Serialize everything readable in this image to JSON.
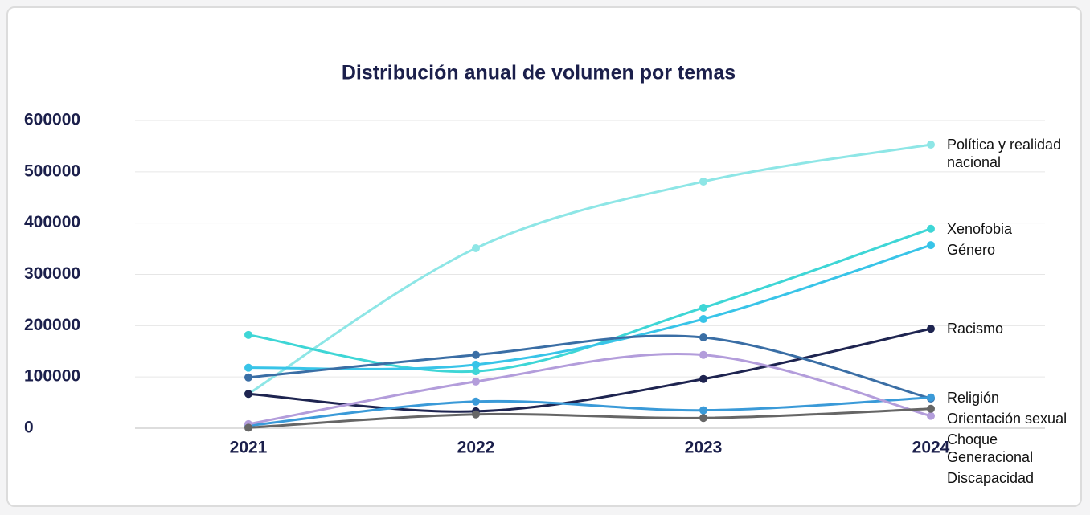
{
  "chart_data": {
    "type": "line",
    "title": "Distribución anual de volumen por temas",
    "categories": [
      "2021",
      "2022",
      "2023",
      "2024"
    ],
    "ylim": [
      0,
      600000
    ],
    "yticks": [
      0,
      100000,
      200000,
      300000,
      400000,
      500000,
      600000
    ],
    "grid": true,
    "smooth": true,
    "series": [
      {
        "name": "Política y realidad nacional",
        "color": "#8ee6e6",
        "values": [
          67000,
          351000,
          481000,
          553000
        ]
      },
      {
        "name": "Xenofobia",
        "color": "#3ed6d6",
        "values": [
          182000,
          111000,
          235000,
          389000
        ]
      },
      {
        "name": "Género",
        "color": "#38c4e8",
        "values": [
          118000,
          124000,
          213000,
          357000
        ]
      },
      {
        "name": "Racismo",
        "color": "#1e2450",
        "values": [
          67000,
          33000,
          96000,
          194000
        ]
      },
      {
        "name": "Orientación sexual",
        "color": "#3a6ea5",
        "values": [
          99000,
          143000,
          177000,
          58000
        ]
      },
      {
        "name": "Religión",
        "color": "#3a9ad8",
        "values": [
          5000,
          52000,
          35000,
          60000
        ]
      },
      {
        "name": "Discapacidad",
        "color": "#b39ddb",
        "values": [
          8000,
          91000,
          143000,
          24000
        ]
      },
      {
        "name": "Choque Generacional",
        "color": "#666666",
        "values": [
          1000,
          27000,
          20000,
          38000
        ]
      }
    ]
  }
}
